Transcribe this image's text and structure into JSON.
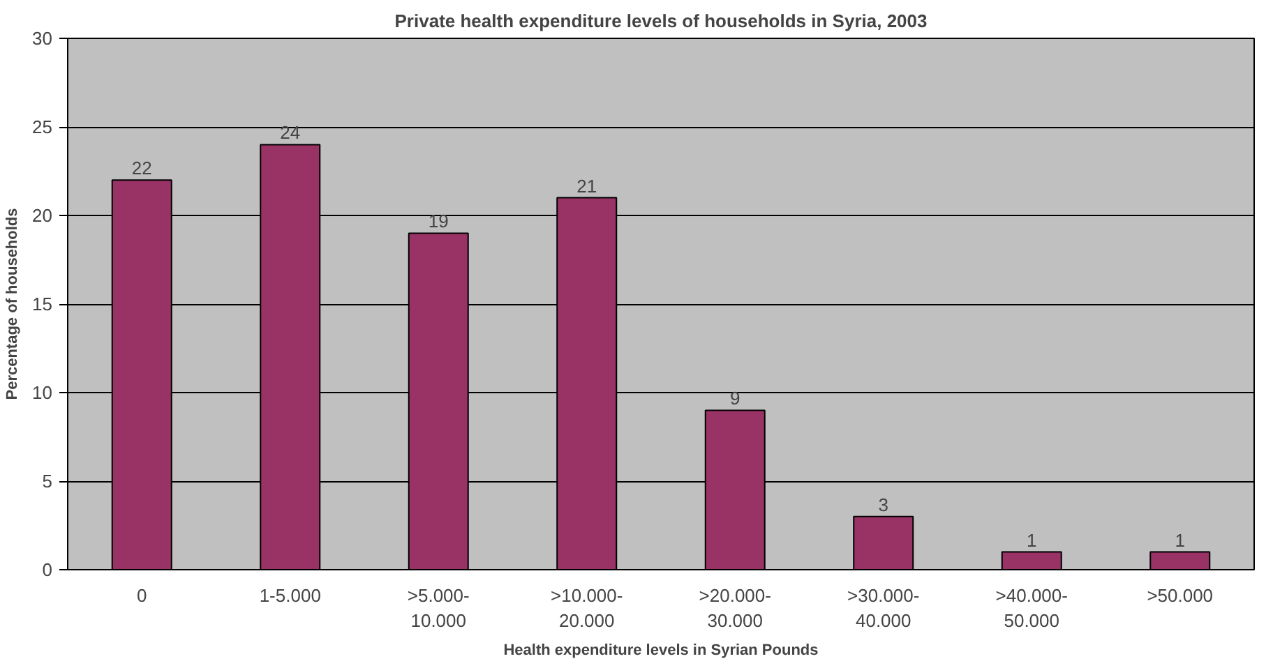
{
  "chart_data": {
    "type": "bar",
    "title": "Private health expenditure levels of households in Syria, 2003",
    "xlabel": "Health expenditure levels in Syrian Pounds",
    "ylabel": "Percentage of households",
    "categories": [
      "0",
      "1-5.000",
      ">5.000-\n10.000",
      ">10.000-\n20.000",
      ">20.000-\n30.000",
      ">30.000-\n40.000",
      ">40.000-\n50.000",
      ">50.000"
    ],
    "values": [
      22,
      24,
      19,
      21,
      9,
      3,
      1,
      1
    ],
    "color": "#993366",
    "ylim": [
      0,
      30
    ],
    "yticks": [
      0,
      5,
      10,
      15,
      20,
      25,
      30
    ],
    "grid": "y",
    "data_labels": true
  }
}
